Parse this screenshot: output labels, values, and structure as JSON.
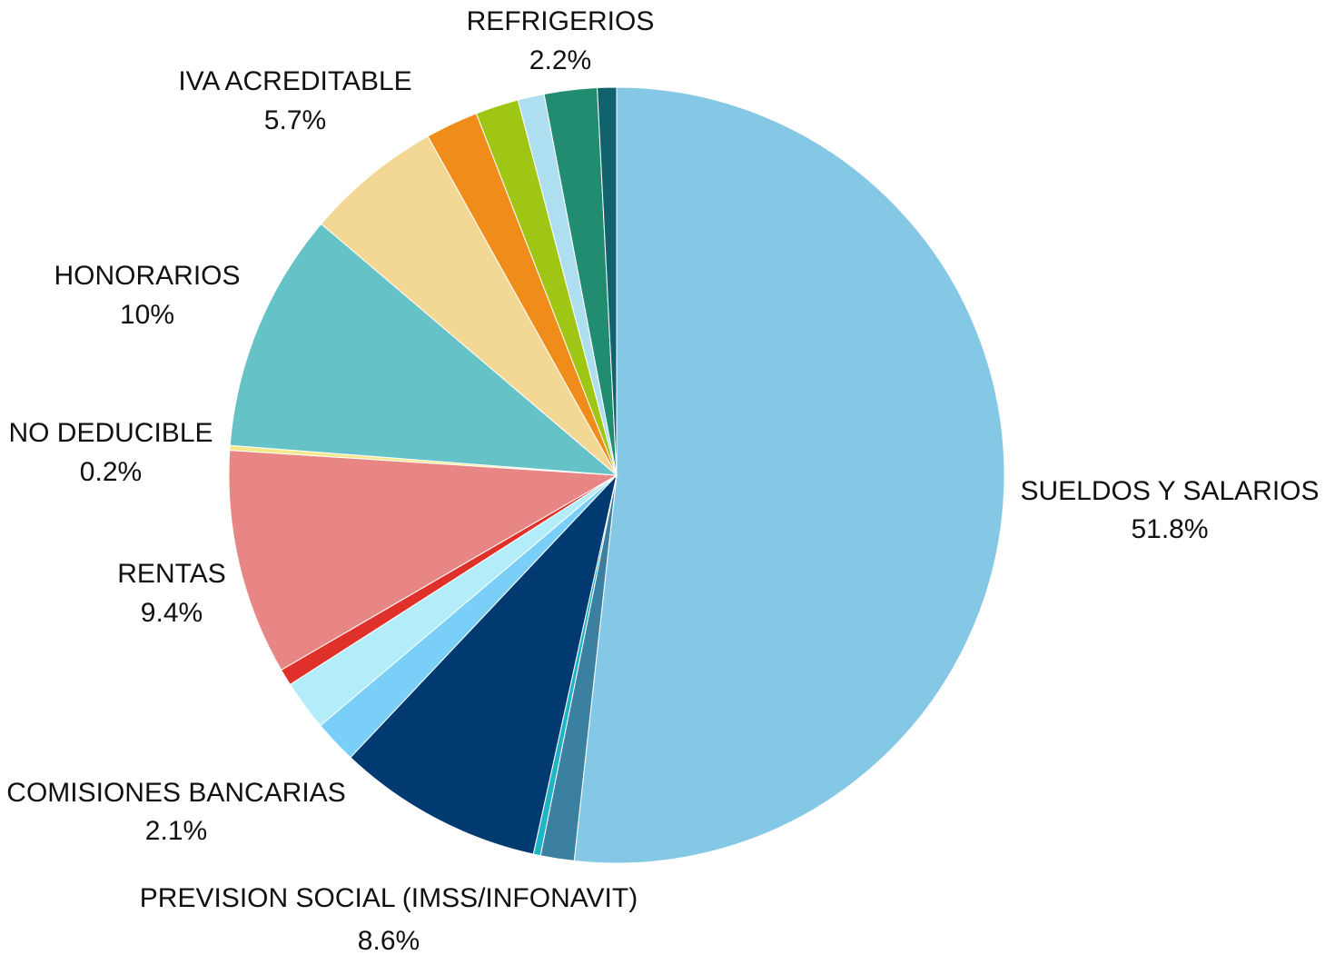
{
  "chart_data": {
    "type": "pie",
    "start_angle_deg": 0,
    "direction": "clockwise",
    "slices": [
      {
        "label": "SUELDOS Y SALARIOS",
        "value": 51.8,
        "value_label": "51.8%",
        "color": "#85C8E6"
      },
      {
        "label": "",
        "value": 1.4,
        "color": "#3B7FA1"
      },
      {
        "label": "",
        "value": 0.3,
        "color": "#1FB4C6"
      },
      {
        "label": "PREVISION SOCIAL (IMSS/INFONAVIT)",
        "value": 8.6,
        "value_label": "8.6%",
        "color": "#003A70"
      },
      {
        "label": "",
        "value": 1.8,
        "color": "#79CFF8"
      },
      {
        "label": "COMISIONES BANCARIAS",
        "value": 2.1,
        "value_label": "2.1%",
        "color": "#B4EDFA"
      },
      {
        "label": "",
        "value": 0.7,
        "color": "#E0302A"
      },
      {
        "label": "RENTAS",
        "value": 9.4,
        "value_label": "9.4%",
        "color": "#E88685"
      },
      {
        "label": "NO DEDUCIBLE",
        "value": 0.2,
        "value_label": "0.2%",
        "color": "#F4E98A"
      },
      {
        "label": "HONORARIOS",
        "value": 10,
        "value_label": "10%",
        "color": "#65C2C6"
      },
      {
        "label": "IVA ACREDITABLE",
        "value": 5.7,
        "value_label": "5.7%",
        "color": "#F2D795"
      },
      {
        "label": "",
        "value": 2.2,
        "color": "#F08C1A"
      },
      {
        "label": "",
        "value": 1.8,
        "color": "#A0C615"
      },
      {
        "label": "",
        "value": 1.1,
        "color": "#AEDFF0"
      },
      {
        "label": "REFRIGERIOS",
        "value": 2.2,
        "value_label": "2.2%",
        "color": "#218C6F"
      },
      {
        "label": "",
        "value": 0.8,
        "color": "#12626E"
      }
    ]
  }
}
